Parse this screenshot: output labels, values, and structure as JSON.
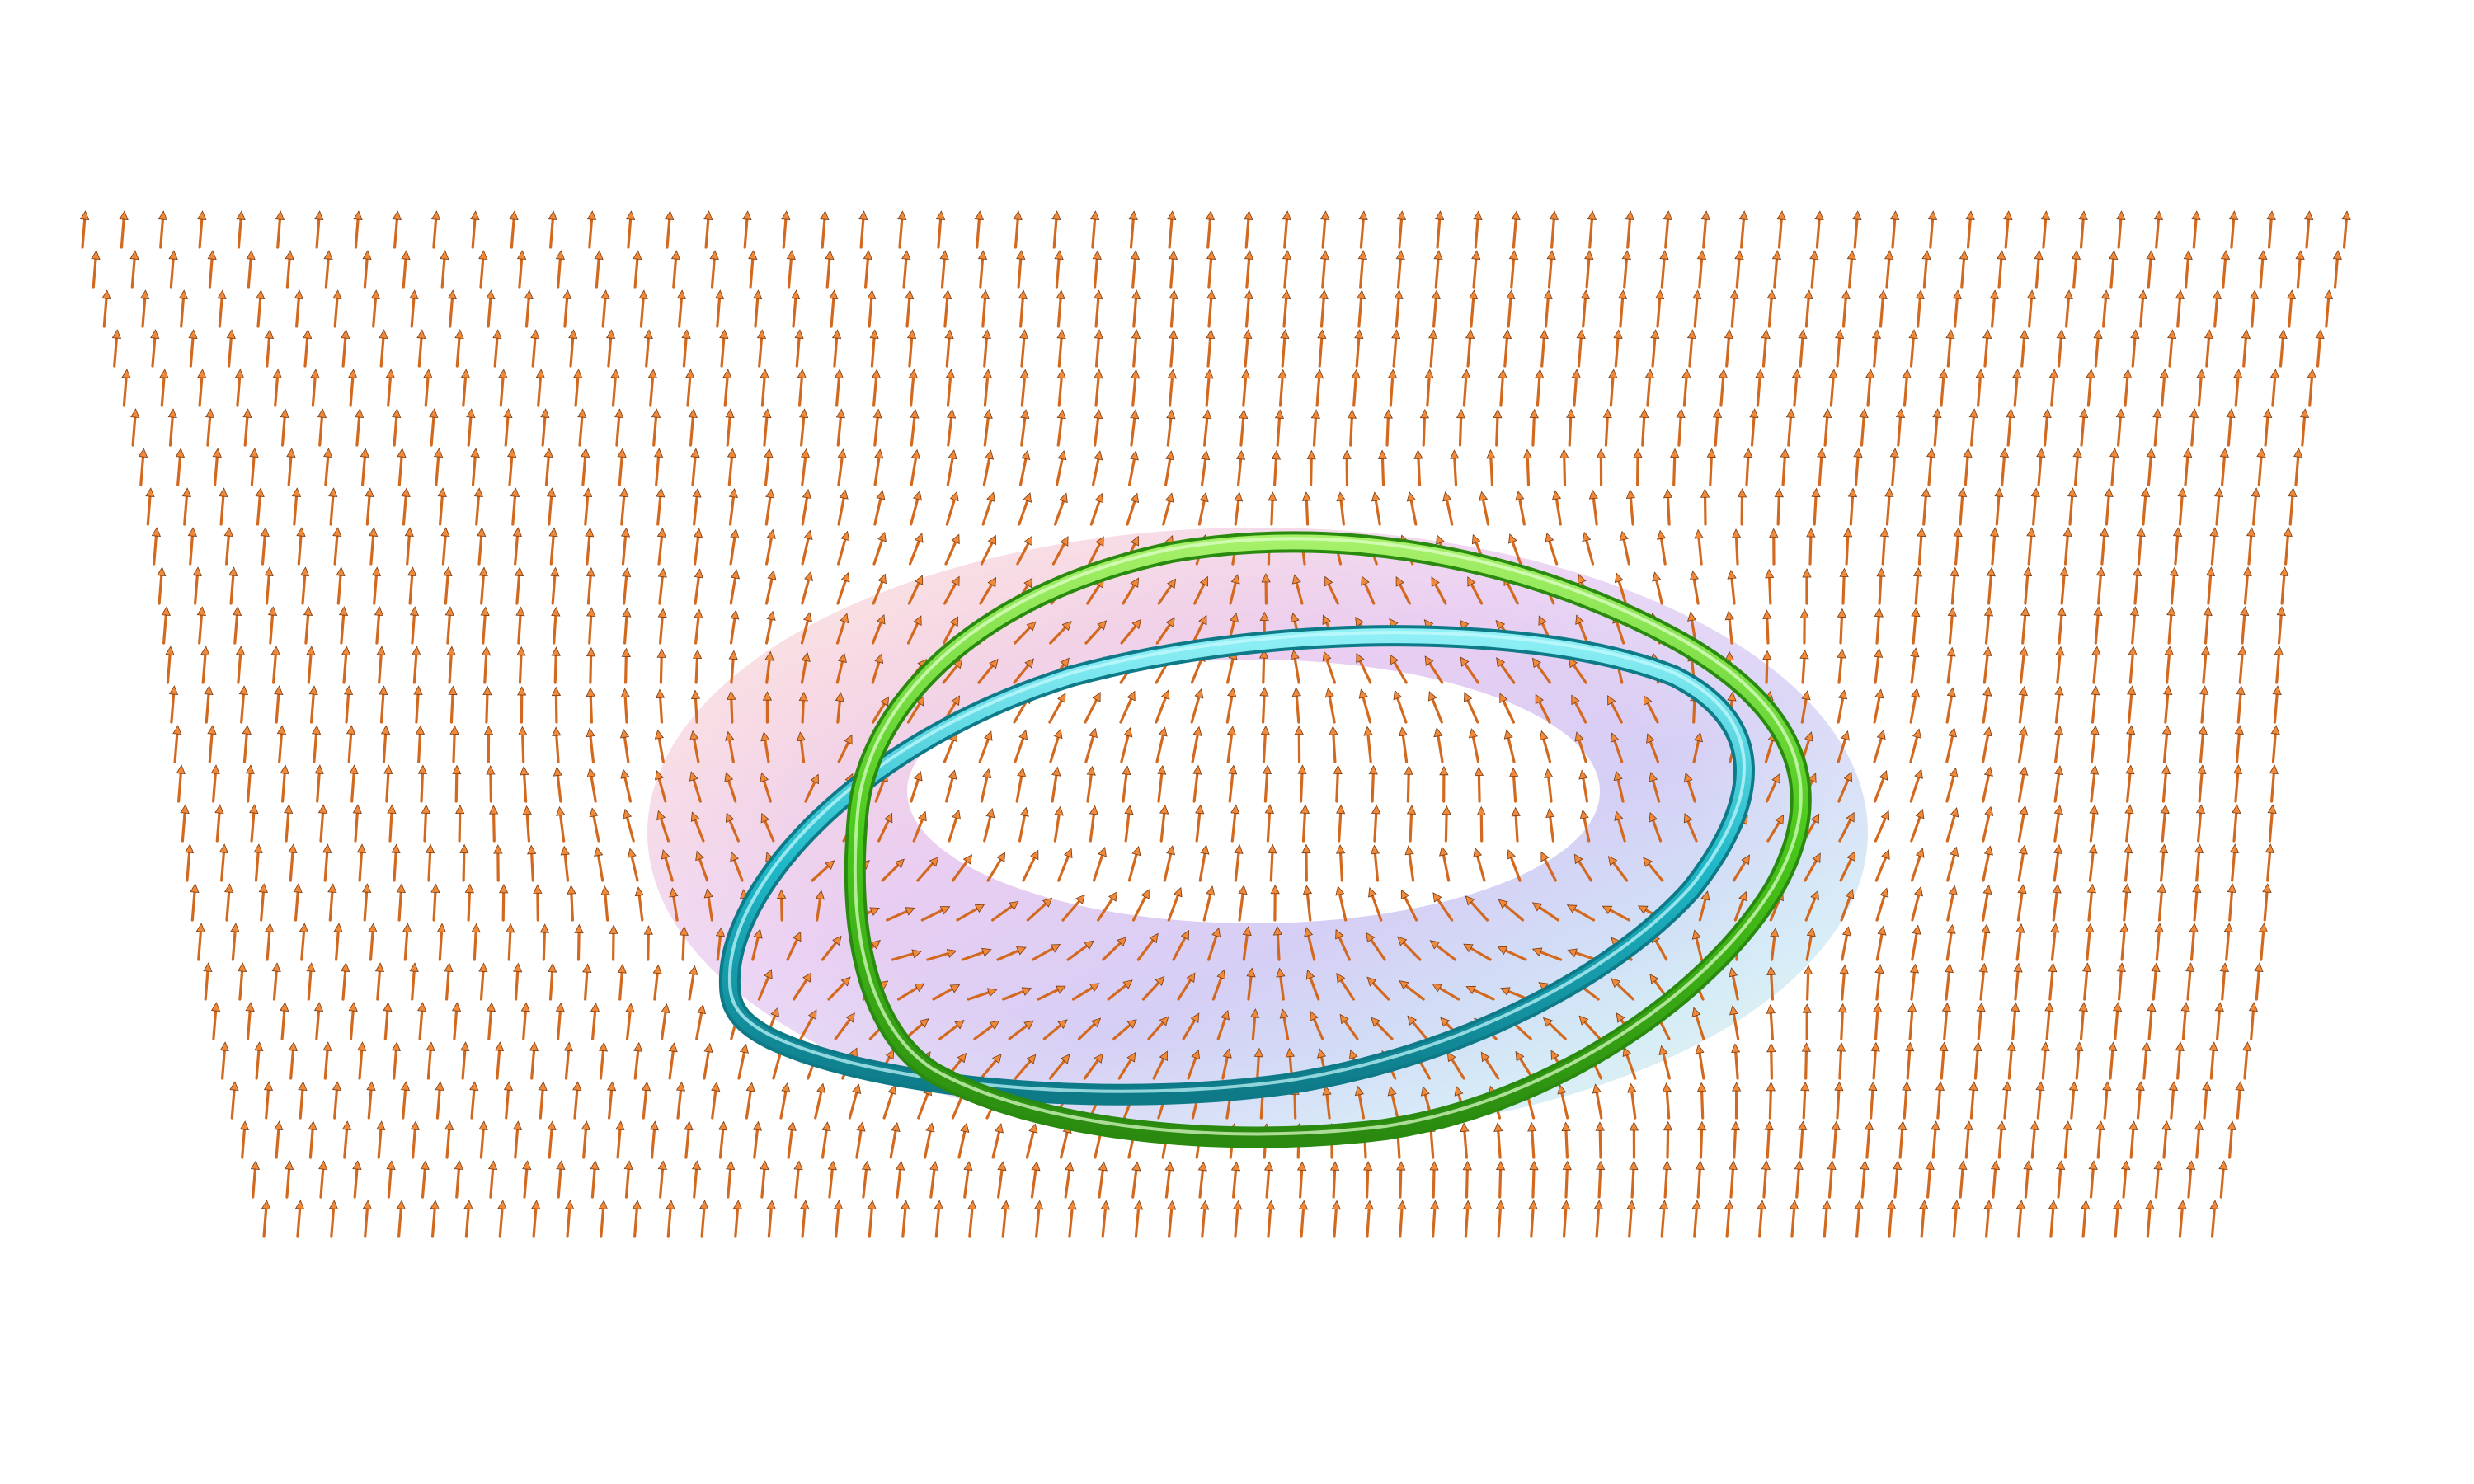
{
  "scene": {
    "description_visible_text": "",
    "background_color": "#ffffff",
    "vector_field": {
      "icon": "arrow-glyph",
      "color": "#d2691e",
      "highlight_color": "#f08a3a",
      "shadow_color": "#7a3a10",
      "columns": 60,
      "rows": 26,
      "orientation": "upward"
    },
    "torus_surface": {
      "colors": [
        "#f2b5c8",
        "#d9a6e8",
        "#b5a8ee",
        "#a9d8f0",
        "#c9f0b9",
        "#f4d1a6"
      ],
      "opacity": 0.55
    },
    "rings": [
      {
        "name": "green-ring",
        "color": "#49c81a",
        "highlight": "#a6f06a"
      },
      {
        "name": "cyan-ring",
        "color": "#1fb8c8",
        "highlight": "#8ff0f6"
      }
    ]
  }
}
